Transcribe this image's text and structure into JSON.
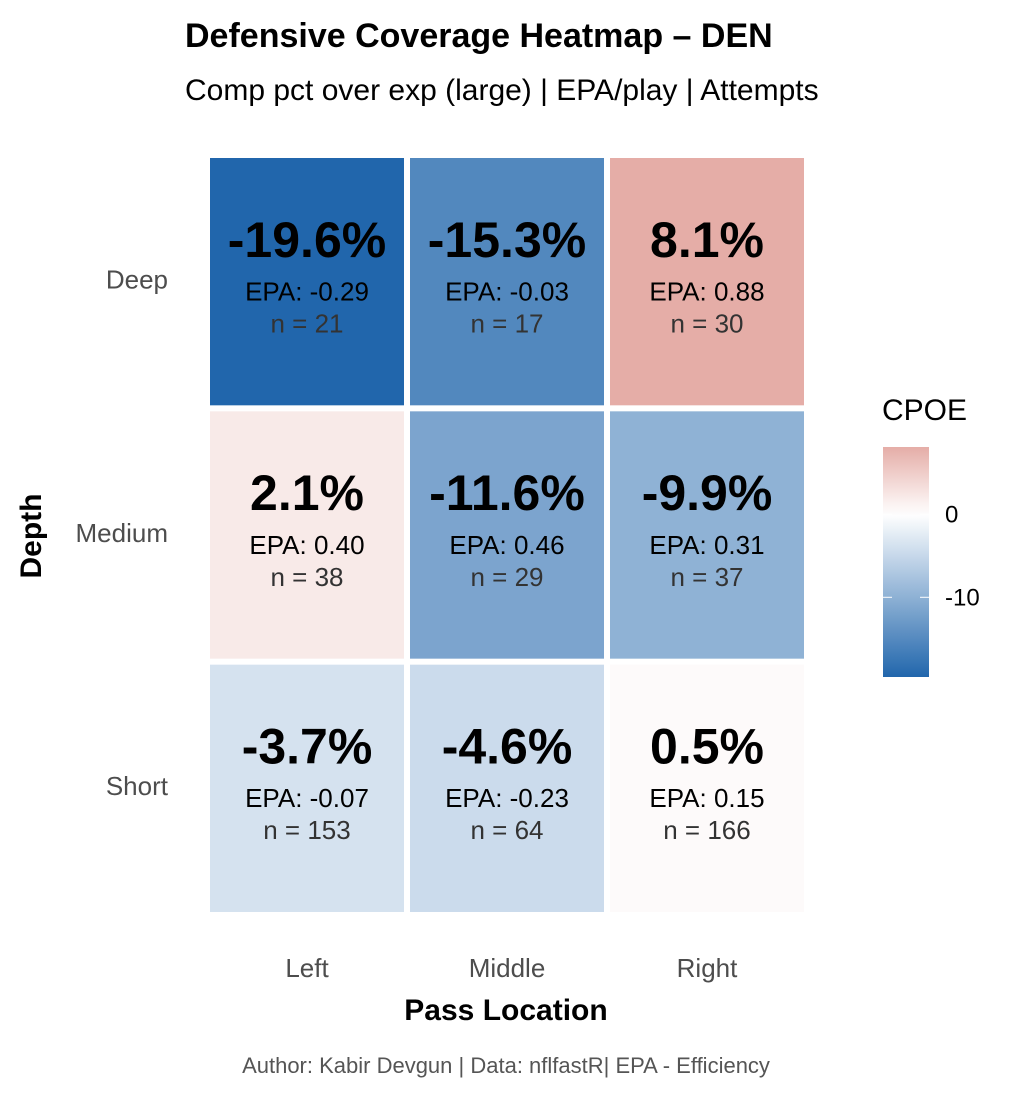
{
  "chart_data": {
    "type": "heatmap",
    "title": "Defensive Coverage Heatmap – DEN",
    "subtitle": "Comp pct over exp (large) | EPA/play | Attempts",
    "x_label": "Pass Location",
    "y_label": "Depth",
    "caption": "Author: Kabir Devgun | Data: nflfastR| EPA - Efficiency",
    "x_categories": [
      "Left",
      "Middle",
      "Right"
    ],
    "y_categories": [
      "Deep",
      "Medium",
      "Short"
    ],
    "values": [
      [
        -19.6,
        -15.3,
        8.1
      ],
      [
        2.1,
        -11.6,
        -9.9
      ],
      [
        -3.7,
        -4.6,
        0.5
      ]
    ],
    "value_labels": [
      [
        "-19.6%",
        "-15.3%",
        "8.1%"
      ],
      [
        "2.1%",
        "-11.6%",
        "-9.9%"
      ],
      [
        "-3.7%",
        "-4.6%",
        "0.5%"
      ]
    ],
    "epa": [
      [
        -0.29,
        -0.03,
        0.88
      ],
      [
        0.4,
        0.46,
        0.31
      ],
      [
        -0.07,
        -0.23,
        0.15
      ]
    ],
    "epa_labels": [
      [
        "EPA: -0.29",
        "EPA: -0.03",
        "EPA: 0.88"
      ],
      [
        "EPA: 0.40",
        "EPA: 0.46",
        "EPA: 0.31"
      ],
      [
        "EPA: -0.07",
        "EPA: -0.23",
        "EPA: 0.15"
      ]
    ],
    "n": [
      [
        21,
        17,
        30
      ],
      [
        38,
        29,
        37
      ],
      [
        153,
        64,
        166
      ]
    ],
    "n_labels": [
      [
        "n = 21",
        "n = 17",
        "n = 30"
      ],
      [
        "n = 38",
        "n = 29",
        "n = 37"
      ],
      [
        "n = 153",
        "n = 64",
        "n = 166"
      ]
    ],
    "legend_title": "CPOE",
    "clim": [
      -19.6,
      8.1
    ],
    "cticks": [
      0,
      -10
    ],
    "colorscale": {
      "low": "#2166ac",
      "mid": "#ffffff",
      "high": "#c0392b",
      "midpoint": 0
    }
  }
}
